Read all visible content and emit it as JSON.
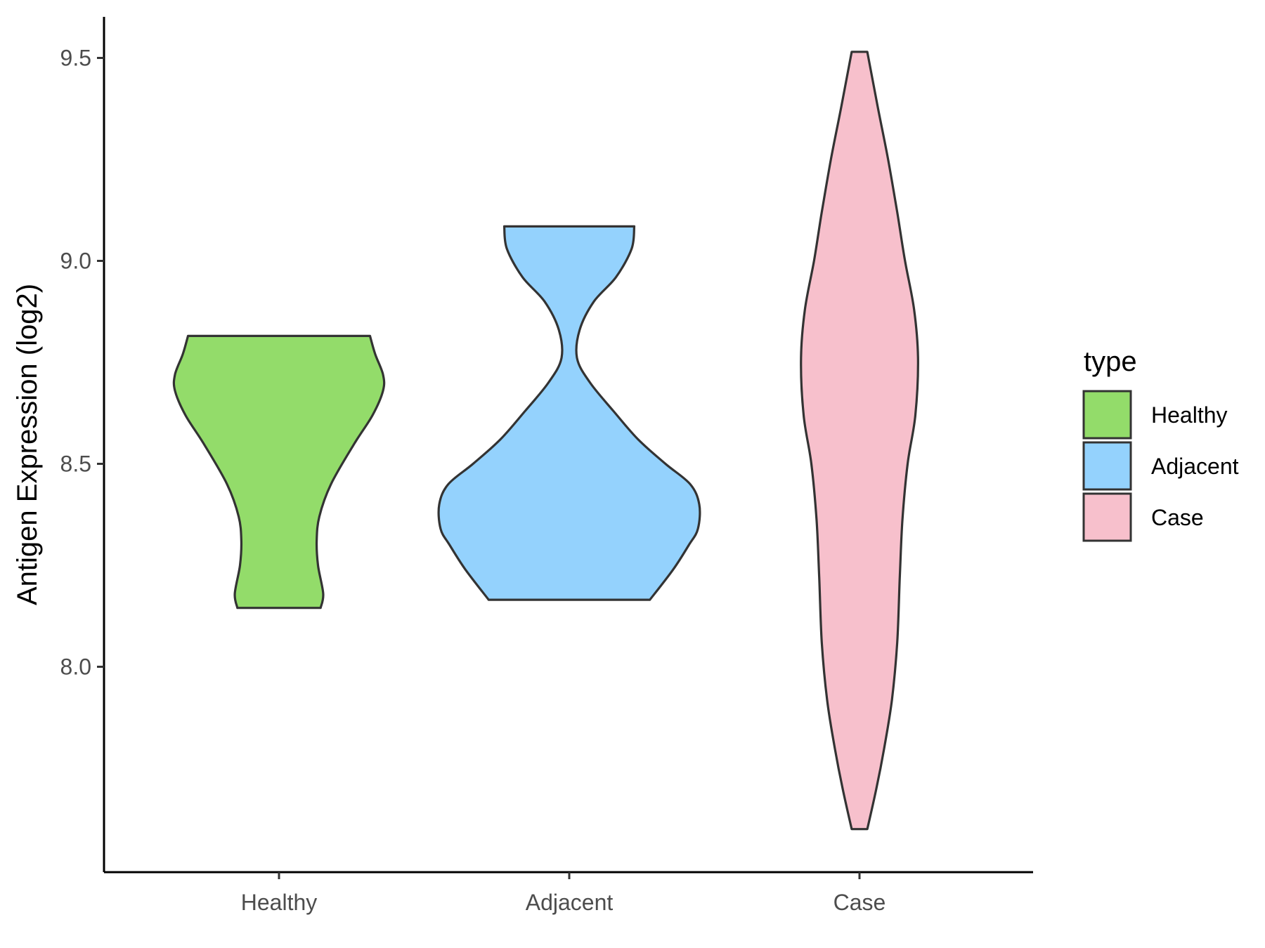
{
  "chart_data": {
    "type": "violin",
    "title": "",
    "xlabel": "",
    "ylabel": "Antigen Expression (log2)",
    "categories": [
      "Healthy",
      "Adjacent",
      "Case"
    ],
    "ylim": [
      7.5,
      9.6
    ],
    "yticks": [
      8.0,
      8.5,
      9.0,
      9.5
    ],
    "ytick_labels": [
      "8.0",
      "8.5",
      "9.0",
      "9.5"
    ],
    "grid": false,
    "legend": {
      "title": "type",
      "position": "right",
      "entries": [
        "Healthy",
        "Adjacent",
        "Case"
      ]
    },
    "colors": {
      "Healthy": "#93dc6a",
      "Adjacent": "#94d2fd",
      "Case": "#f7c0cc",
      "outline": "#333333",
      "axis": "#000000"
    },
    "series": [
      {
        "name": "Healthy",
        "min": 8.145,
        "max": 8.815,
        "density_profile": [
          [
            8.145,
            0.32
          ],
          [
            8.18,
            0.34
          ],
          [
            8.25,
            0.3
          ],
          [
            8.31,
            0.29
          ],
          [
            8.37,
            0.31
          ],
          [
            8.45,
            0.4
          ],
          [
            8.55,
            0.58
          ],
          [
            8.62,
            0.72
          ],
          [
            8.68,
            0.8
          ],
          [
            8.72,
            0.8
          ],
          [
            8.77,
            0.74
          ],
          [
            8.815,
            0.7
          ]
        ]
      },
      {
        "name": "Adjacent",
        "min": 8.165,
        "max": 9.085,
        "density_profile": [
          [
            8.165,
            0.62
          ],
          [
            8.24,
            0.8
          ],
          [
            8.3,
            0.92
          ],
          [
            8.34,
            0.99
          ],
          [
            8.4,
            1.0
          ],
          [
            8.45,
            0.93
          ],
          [
            8.5,
            0.74
          ],
          [
            8.56,
            0.53
          ],
          [
            8.63,
            0.34
          ],
          [
            8.7,
            0.16
          ],
          [
            8.76,
            0.06
          ],
          [
            8.83,
            0.08
          ],
          [
            8.9,
            0.19
          ],
          [
            8.96,
            0.36
          ],
          [
            9.03,
            0.48
          ],
          [
            9.085,
            0.5
          ]
        ]
      },
      {
        "name": "Case",
        "min": 7.6,
        "max": 9.515,
        "density_profile": [
          [
            7.6,
            0.06
          ],
          [
            7.7,
            0.13
          ],
          [
            7.8,
            0.19
          ],
          [
            7.92,
            0.25
          ],
          [
            8.06,
            0.29
          ],
          [
            8.22,
            0.31
          ],
          [
            8.36,
            0.33
          ],
          [
            8.5,
            0.37
          ],
          [
            8.62,
            0.43
          ],
          [
            8.76,
            0.45
          ],
          [
            8.88,
            0.42
          ],
          [
            9.0,
            0.35
          ],
          [
            9.12,
            0.29
          ],
          [
            9.25,
            0.22
          ],
          [
            9.38,
            0.14
          ],
          [
            9.515,
            0.06
          ]
        ]
      }
    ]
  }
}
